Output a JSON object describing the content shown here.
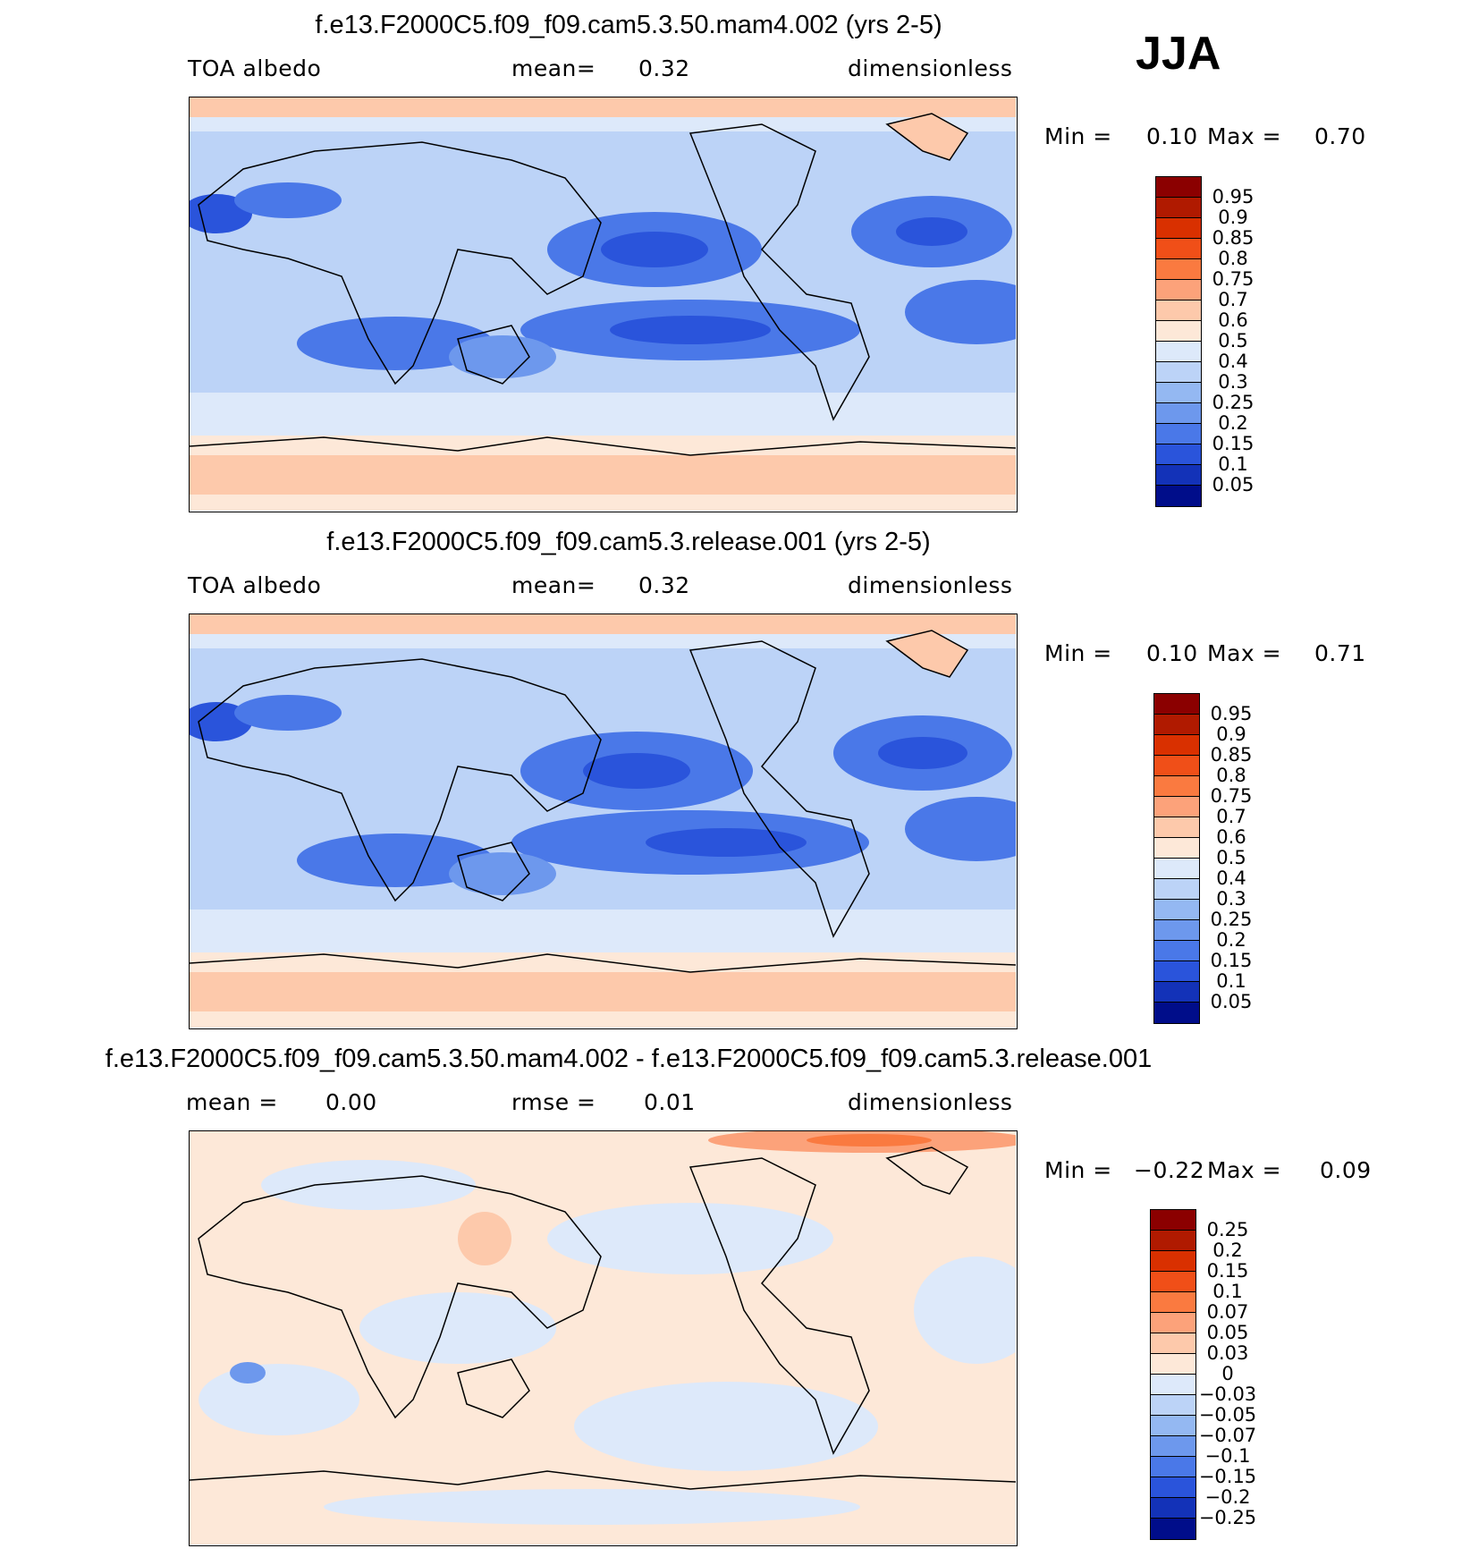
{
  "season": "JJA",
  "panels": [
    {
      "title": "f.e13.F2000C5.f09_f09.cam5.3.50.mam4.002 (yrs 2-5)",
      "left_label": "TOA albedo",
      "mid_label": "mean=",
      "mid_value": "0.32",
      "right_label": "dimensionless",
      "min_label": "Min =",
      "min_value": "0.10",
      "max_label": "Max =",
      "max_value": "0.70",
      "colorbar": {
        "labels": [
          "0.95",
          "0.9",
          "0.85",
          "0.8",
          "0.75",
          "0.7",
          "0.6",
          "0.5",
          "0.4",
          "0.3",
          "0.25",
          "0.2",
          "0.15",
          "0.1",
          "0.05"
        ],
        "colors": [
          "#8b0000",
          "#b01a00",
          "#d93000",
          "#f04f18",
          "#fa7a40",
          "#fca27a",
          "#fdc9ab",
          "#fde8d8",
          "#dde9fa",
          "#bcd3f7",
          "#94b8f2",
          "#6d98ed",
          "#4a78e8",
          "#2a54db",
          "#1332b8",
          "#000d8a"
        ]
      }
    },
    {
      "title": "f.e13.F2000C5.f09_f09.cam5.3.release.001 (yrs 2-5)",
      "left_label": "TOA albedo",
      "mid_label": "mean=",
      "mid_value": "0.32",
      "right_label": "dimensionless",
      "min_label": "Min =",
      "min_value": "0.10",
      "max_label": "Max =",
      "max_value": "0.71",
      "colorbar": {
        "labels": [
          "0.95",
          "0.9",
          "0.85",
          "0.8",
          "0.75",
          "0.7",
          "0.6",
          "0.5",
          "0.4",
          "0.3",
          "0.25",
          "0.2",
          "0.15",
          "0.1",
          "0.05"
        ],
        "colors": [
          "#8b0000",
          "#b01a00",
          "#d93000",
          "#f04f18",
          "#fa7a40",
          "#fca27a",
          "#fdc9ab",
          "#fde8d8",
          "#dde9fa",
          "#bcd3f7",
          "#94b8f2",
          "#6d98ed",
          "#4a78e8",
          "#2a54db",
          "#1332b8",
          "#000d8a"
        ]
      }
    },
    {
      "title": "f.e13.F2000C5.f09_f09.cam5.3.50.mam4.002 - f.e13.F2000C5.f09_f09.cam5.3.release.001",
      "left_label": "mean =",
      "left_value": "0.00",
      "mid_label": "rmse =",
      "mid_value": "0.01",
      "right_label": "dimensionless",
      "min_label": "Min =",
      "min_value": "−0.22",
      "max_label": "Max =",
      "max_value": "0.09",
      "colorbar": {
        "labels": [
          "0.25",
          "0.2",
          "0.15",
          "0.1",
          "0.07",
          "0.05",
          "0.03",
          "0",
          "−0.03",
          "−0.05",
          "−0.07",
          "−0.1",
          "−0.15",
          "−0.2",
          "−0.25"
        ],
        "colors": [
          "#8b0000",
          "#b01a00",
          "#d93000",
          "#f04f18",
          "#fa7a40",
          "#fca27a",
          "#fdc9ab",
          "#fde8d8",
          "#dde9fa",
          "#bcd3f7",
          "#94b8f2",
          "#6d98ed",
          "#4a78e8",
          "#2a54db",
          "#1332b8",
          "#000d8a"
        ]
      }
    }
  ]
}
